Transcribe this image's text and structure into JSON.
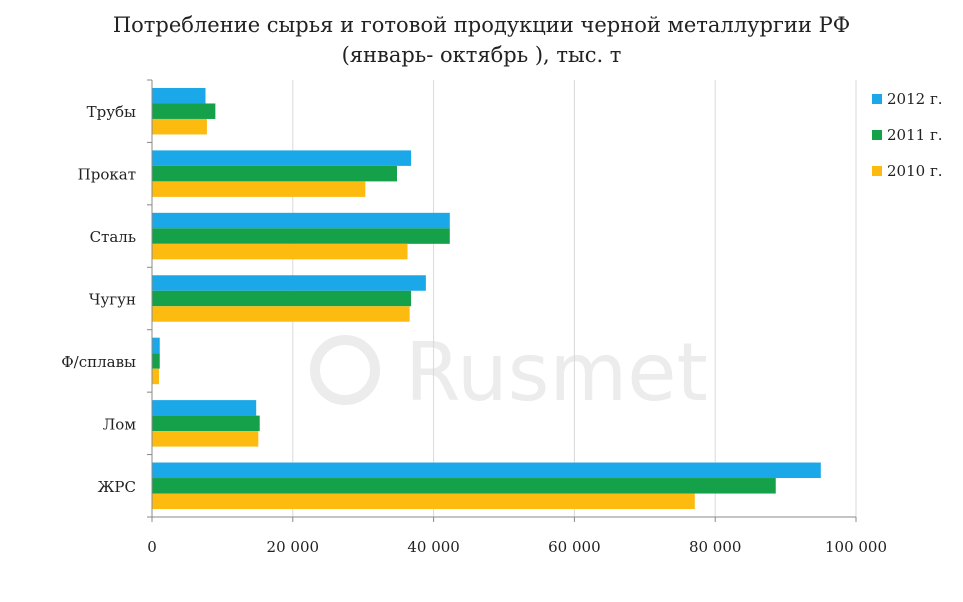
{
  "chart_data": {
    "type": "bar",
    "orientation": "horizontal",
    "title_lines": [
      "Потребление сырья и готовой продукции черной металлургии РФ",
      "(январь- октябрь ), тыс. т"
    ],
    "categories": [
      "Трубы",
      "Прокат",
      "Сталь",
      "Чугун",
      "Ф/сплавы",
      "Лом",
      "ЖРС"
    ],
    "series": [
      {
        "name": "2012 г.",
        "color": "#1BA8E8",
        "values": [
          7600,
          36800,
          42300,
          38900,
          1100,
          14800,
          95000
        ]
      },
      {
        "name": "2011 г.",
        "color": "#15A04A",
        "values": [
          9000,
          34800,
          42300,
          36800,
          1100,
          15300,
          88600
        ]
      },
      {
        "name": "2010 г.",
        "color": "#FDBB10",
        "values": [
          7800,
          30300,
          36300,
          36600,
          1000,
          15100,
          77100
        ]
      }
    ],
    "xlim": [
      0,
      100000
    ],
    "x_ticks": [
      0,
      20000,
      40000,
      60000,
      80000,
      100000
    ],
    "x_tick_labels": [
      "0",
      "20 000",
      "40 000",
      "60 000",
      "80 000",
      "100 000"
    ],
    "grid": "vertical",
    "legend_position": "right"
  },
  "watermark": {
    "text": "Rusmet"
  }
}
